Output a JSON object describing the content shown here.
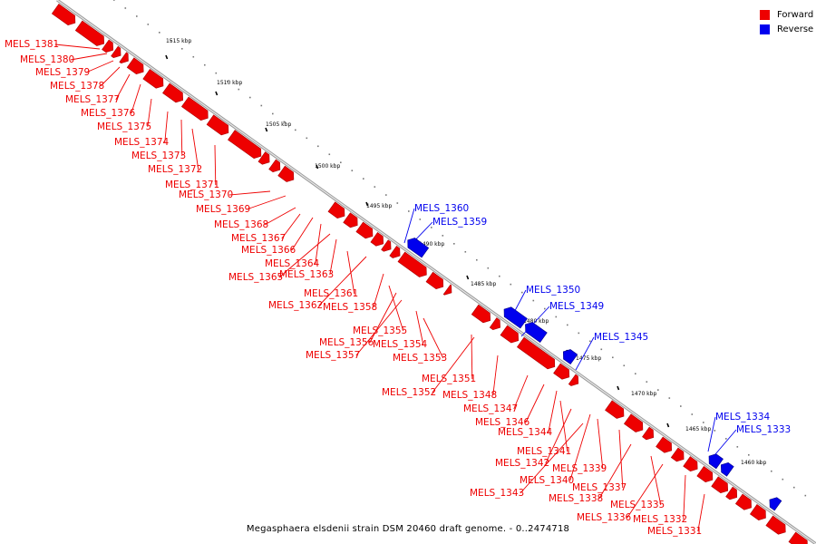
{
  "legend": {
    "forward_label": "Forward",
    "reverse_label": "Reverse",
    "forward_color": "#ee0000",
    "reverse_color": "#0000ee"
  },
  "caption": "Megasphaera elsdenii strain DSM 20460 draft genome. - 0..2474718",
  "ticks": [
    "1515 kbp",
    "1510 kbp",
    "1505 kbp",
    "1500 kbp",
    "1495 kbp",
    "1490 kbp",
    "1485 kbp",
    "1480 kbp",
    "1475 kbp",
    "1470 kbp",
    "1465 kbp",
    "1460 kbp"
  ],
  "genes_forward": [
    "MELS_1381",
    "MELS_1380",
    "MELS_1379",
    "MELS_1378",
    "MELS_1377",
    "MELS_1376",
    "MELS_1375",
    "MELS_1374",
    "MELS_1373",
    "MELS_1372",
    "MELS_1371",
    "MELS_1370",
    "MELS_1369",
    "MELS_1368",
    "MELS_1367",
    "MELS_1366",
    "MELS_1364",
    "MELS_1365",
    "MELS_1363",
    "MELS_1361",
    "MELS_1362",
    "MELS_1358",
    "MELS_1355",
    "MELS_1356",
    "MELS_1354",
    "MELS_1357",
    "MELS_1353",
    "MELS_1351",
    "MELS_1352",
    "MELS_1348",
    "MELS_1347",
    "MELS_1346",
    "MELS_1344",
    "MELS_1341",
    "MELS_1342",
    "MELS_1339",
    "MELS_1340",
    "MELS_1337",
    "MELS_1338",
    "MELS_1343",
    "MELS_1335",
    "MELS_1336",
    "MELS_1332",
    "MELS_1331"
  ],
  "genes_reverse": [
    "MELS_1360",
    "MELS_1359",
    "MELS_1350",
    "MELS_1349",
    "MELS_1345",
    "MELS_1334",
    "MELS_1333"
  ]
}
